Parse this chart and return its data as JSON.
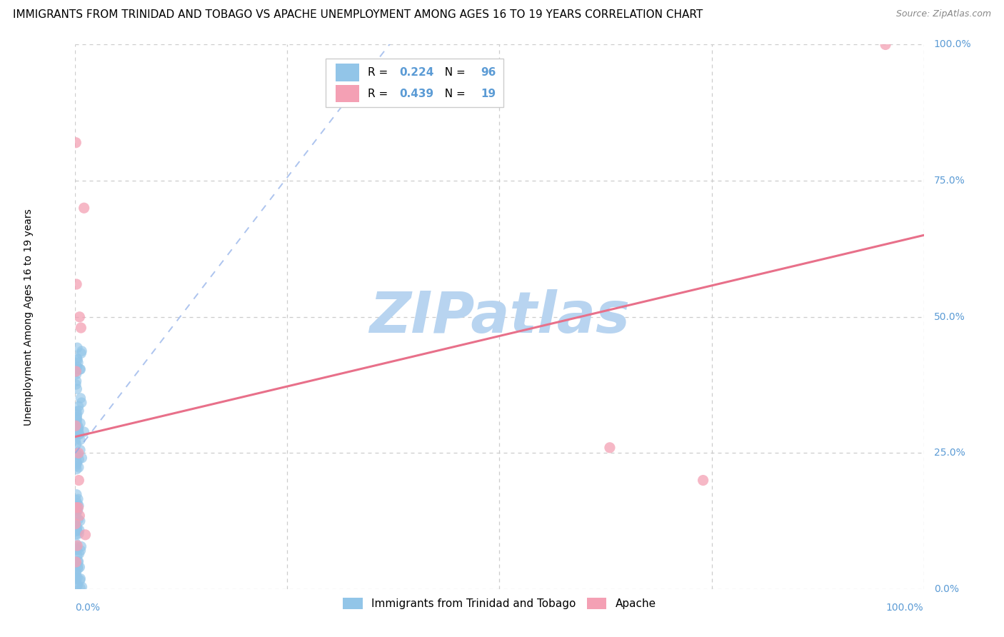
{
  "title": "IMMIGRANTS FROM TRINIDAD AND TOBAGO VS APACHE UNEMPLOYMENT AMONG AGES 16 TO 19 YEARS CORRELATION CHART",
  "source": "Source: ZipAtlas.com",
  "ylabel": "Unemployment Among Ages 16 to 19 years",
  "blue_label": "Immigrants from Trinidad and Tobago",
  "pink_label": "Apache",
  "blue_R": 0.224,
  "blue_N": 96,
  "pink_R": 0.439,
  "pink_N": 19,
  "blue_color": "#92C5E8",
  "pink_color": "#F4A0B4",
  "blue_trend_color": "#8AABE8",
  "pink_trend_color": "#E8708A",
  "watermark": "ZIPatlas",
  "watermark_color": "#B8D4F0",
  "xlim": [
    0.0,
    1.0
  ],
  "ylim": [
    0.0,
    1.0
  ],
  "blue_trend_x0": 0.0,
  "blue_trend_y0": 0.25,
  "blue_trend_x1": 0.38,
  "blue_trend_y1": 1.02,
  "pink_trend_x0": 0.0,
  "pink_trend_y0": 0.28,
  "pink_trend_x1": 1.0,
  "pink_trend_y1": 0.65,
  "blue_seed": 42,
  "pink_seed": 99,
  "grid_color": "#CCCCCC",
  "tick_color": "#5B9BD5",
  "title_fontsize": 11,
  "source_fontsize": 9,
  "axis_label_fontsize": 10,
  "legend_fontsize": 11
}
